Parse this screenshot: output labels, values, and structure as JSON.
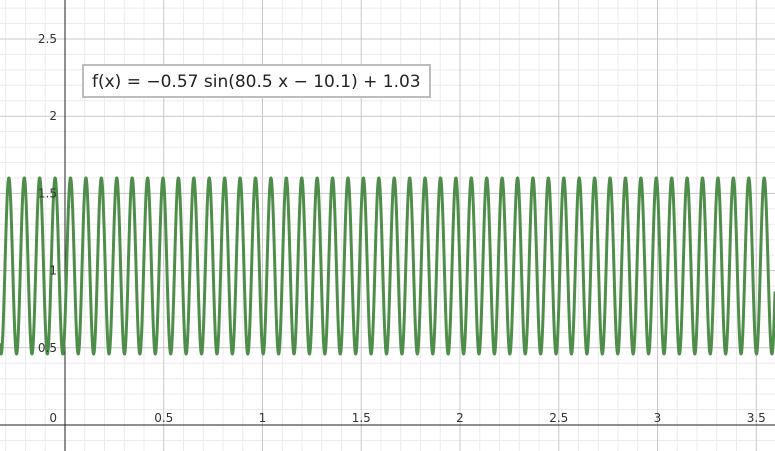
{
  "formula": "f(x)  =  −0.57  sin(80.5 x − 10.1) + 1.03",
  "chart_data": {
    "type": "line",
    "title": "",
    "xlabel": "",
    "ylabel": "",
    "xlim": [
      -0.33,
      3.6
    ],
    "ylim": [
      -0.16,
      2.6
    ],
    "grid": true,
    "x_ticks": [
      0,
      0.5,
      1,
      1.5,
      2,
      2.5,
      3,
      3.5
    ],
    "x_tick_labels": [
      "0",
      "0.5",
      "1",
      "1.5",
      "2",
      "2.5",
      "3",
      "3.5"
    ],
    "y_ticks": [
      0.5,
      1,
      1.5,
      2,
      2.5
    ],
    "y_tick_labels": [
      "0.5",
      "1",
      "1.5",
      "2",
      "2.5"
    ],
    "series": [
      {
        "function": "-0.57*sin(80.5*x - 10.1) + 1.03",
        "amplitude": -0.57,
        "frequency": 80.5,
        "phase": -10.1,
        "offset": 1.03,
        "color": "#4f8e4a"
      }
    ]
  }
}
